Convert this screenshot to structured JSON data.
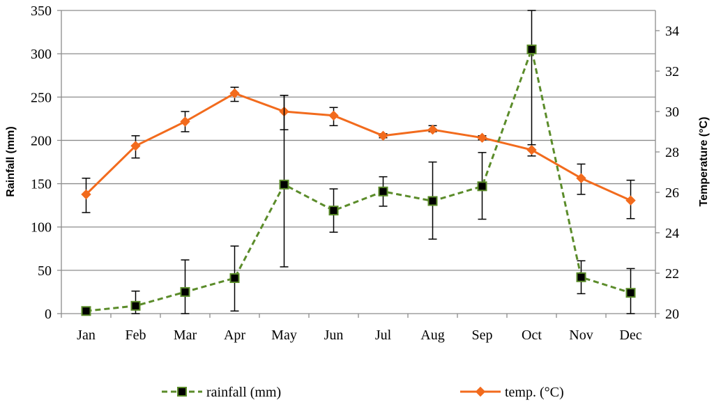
{
  "chart_data": {
    "type": "line",
    "title": "",
    "categories": [
      "Jan",
      "Feb",
      "Mar",
      "Apr",
      "May",
      "Jun",
      "Jul",
      "Aug",
      "Sep",
      "Oct",
      "Nov",
      "Dec"
    ],
    "left_axis": {
      "label": "Rainfall (mm)",
      "range": [
        0,
        350
      ],
      "ticks": [
        0,
        50,
        100,
        150,
        200,
        250,
        300,
        350
      ]
    },
    "right_axis": {
      "label": "Temperature (°C)",
      "range": [
        20,
        35
      ],
      "ticks": [
        20,
        22,
        24,
        26,
        28,
        30,
        32,
        34
      ]
    },
    "series": [
      {
        "name": "rainfall (mm)",
        "axis": "left",
        "color": "#5b8c2a",
        "marker": "square",
        "line_style": "dashed",
        "values": [
          3,
          9,
          25,
          41,
          149,
          119,
          141,
          130,
          147,
          305,
          42,
          24
        ],
        "error_low": [
          3,
          0,
          0,
          3,
          54,
          94,
          124,
          86,
          109,
          195,
          23,
          0
        ],
        "error_high": [
          3,
          26,
          62,
          78,
          252,
          144,
          158,
          175,
          186,
          350,
          61,
          52
        ]
      },
      {
        "name": "temp. (°C)",
        "axis": "right",
        "color": "#f26b1d",
        "marker": "diamond",
        "line_style": "solid",
        "values": [
          25.9,
          28.3,
          29.5,
          30.9,
          30.0,
          29.8,
          28.8,
          29.1,
          28.7,
          28.1,
          26.7,
          25.6
        ],
        "error_low": [
          25.0,
          27.7,
          29.0,
          30.5,
          29.1,
          29.3,
          28.7,
          29.0,
          28.6,
          27.8,
          25.9,
          24.7
        ],
        "error_high": [
          26.7,
          28.8,
          30.0,
          31.2,
          30.8,
          30.2,
          28.9,
          29.3,
          28.8,
          28.1,
          27.4,
          26.6
        ]
      }
    ],
    "grid": true,
    "legend_position": "bottom"
  }
}
